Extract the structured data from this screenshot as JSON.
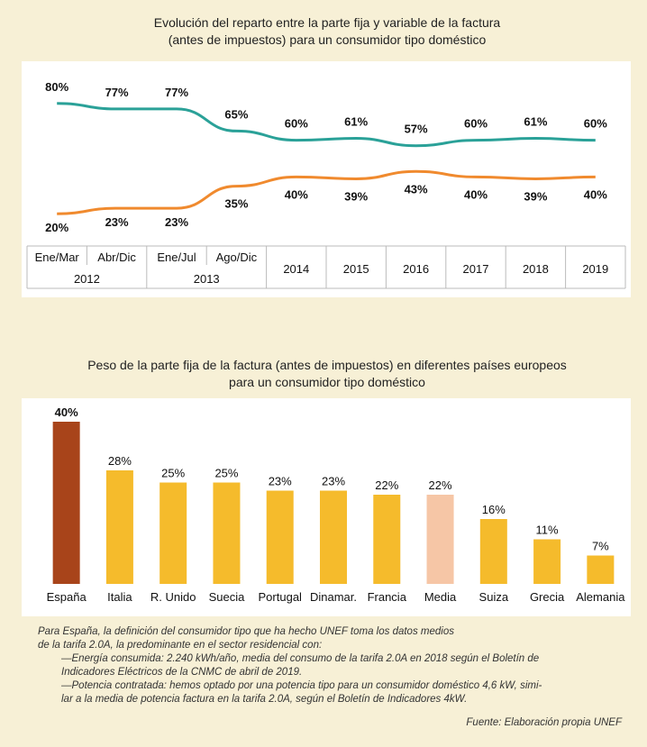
{
  "chart_data": [
    {
      "type": "line",
      "title": "Evolución del reparto entre la parte fija y variable de la factura (antes de impuestos) para un consumidor tipo doméstico",
      "title_lines": [
        "Evolución del reparto entre la parte fija y variable de la factura",
        "(antes de impuestos) para un consumidor tipo doméstico"
      ],
      "categories": [
        "Ene/Mar",
        "Abr/Dic",
        "Ene/Jul",
        "Ago/Dic",
        "2014",
        "2015",
        "2016",
        "2017",
        "2018",
        "2019"
      ],
      "period_years": [
        {
          "label": "2012",
          "span": [
            0,
            1
          ]
        },
        {
          "label": "2013",
          "span": [
            2,
            3
          ]
        }
      ],
      "series": [
        {
          "name": "variable",
          "color": "#2aa198",
          "values": [
            80,
            77,
            77,
            65,
            60,
            61,
            57,
            60,
            61,
            60
          ],
          "labels": [
            "80%",
            "77%",
            "77%",
            "65%",
            "60%",
            "61%",
            "57%",
            "60%",
            "61%",
            "60%"
          ]
        },
        {
          "name": "fija",
          "color": "#f08a2e",
          "values": [
            20,
            23,
            23,
            35,
            40,
            39,
            43,
            40,
            39,
            40
          ],
          "labels": [
            "20%",
            "23%",
            "23%",
            "35%",
            "40%",
            "39%",
            "43%",
            "40%",
            "39%",
            "40%"
          ]
        }
      ],
      "ylim": [
        0,
        100
      ]
    },
    {
      "type": "bar",
      "title": "Peso de la parte fija de la factura (antes de impuestos) en diferentes países europeos para un consumidor tipo doméstico",
      "title_lines": [
        "Peso de la parte fija de la factura (antes de impuestos) en diferentes países europeos",
        "para un consumidor tipo doméstico"
      ],
      "categories": [
        "España",
        "Italia",
        "R. Unido",
        "Suecia",
        "Portugal",
        "Dinamar.",
        "Francia",
        "Media",
        "Suiza",
        "Grecia",
        "Alemania"
      ],
      "values": [
        40,
        28,
        25,
        25,
        23,
        23,
        22,
        22,
        16,
        11,
        7
      ],
      "labels": [
        "40%",
        "28%",
        "25%",
        "25%",
        "23%",
        "23%",
        "22%",
        "22%",
        "16%",
        "11%",
        "7%"
      ],
      "colors": [
        "#a8441a",
        "#f5bb2c",
        "#f5bb2c",
        "#f5bb2c",
        "#f5bb2c",
        "#f5bb2c",
        "#f5bb2c",
        "#f6c6a6",
        "#f5bb2c",
        "#f5bb2c",
        "#f5bb2c"
      ],
      "ylim": [
        0,
        40
      ]
    }
  ],
  "notes": {
    "line1": "Para España, la definición del consumidor tipo que ha hecho UNEF toma los datos medios",
    "line2": "de la tarifa 2.0A, la predominante en el sector residencial con:",
    "line3": "—Energía consumida: 2.240 kWh/año, media del consumo de la tarifa 2.0A en 2018 según el Boletín de",
    "line4": "Indicadores Eléctricos de la CNMC de abril de 2019.",
    "line5": "—Potencia contratada: hemos optado por una potencia tipo para un consumidor doméstico 4,6 kW, simi-",
    "line6": "lar a la media de potencia factura en la tarifa 2.0A, según el Boletín de Indicadores 4kW.",
    "source": "Fuente: Elaboración propia UNEF"
  }
}
